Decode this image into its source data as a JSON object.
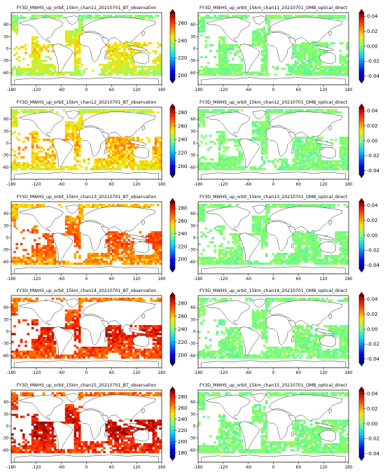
{
  "figure": {
    "rows": [
      {
        "observation": {
          "title": "FY3D_MWHS_up_orbit_15km_chan11_20210701_BT_observation",
          "colorbar": {
            "ticks": [
              200,
              220,
              240,
              260
            ],
            "range": [
              195,
              272
            ]
          },
          "level": 0.55
        },
        "omb": {
          "title": "FY3D_MWHS_up_orbit_15km_chan11_20210701_OMB_optical_direct",
          "colorbar": {
            "ticks": [
              "0.04",
              "0.02",
              "0.00",
              "-0.02",
              "-0.04"
            ],
            "range": [
              -0.045,
              0.045
            ]
          }
        }
      },
      {
        "observation": {
          "title": "FY3D_MWHS_up_orbit_15km_chan12_20210701_BT_observation",
          "colorbar": {
            "ticks": [
              200,
              220,
              240,
              260,
              280
            ],
            "range": [
              188,
              288
            ]
          },
          "level": 0.62
        },
        "omb": {
          "title": "FY3D_MWHS_up_orbit_15km_chan12_20210701_OMB_optical_direct",
          "colorbar": {
            "ticks": [
              "0.04",
              "0.02",
              "0.00",
              "-0.02",
              "-0.04"
            ],
            "range": [
              -0.045,
              0.045
            ]
          }
        }
      },
      {
        "observation": {
          "title": "FY3D_MWHS_up_orbit_15km_chan13_20210701_BT_observation",
          "colorbar": {
            "ticks": [
              200,
              220,
              240,
              260,
              280
            ],
            "range": [
              185,
              290
            ]
          },
          "level": 0.72
        },
        "omb": {
          "title": "FY3D_MWHS_up_orbit_15km_chan13_20210701_OMB_optical_direct",
          "colorbar": {
            "ticks": [
              "0.04",
              "0.02",
              "0.00",
              "-0.02",
              "-0.04"
            ],
            "range": [
              -0.045,
              0.045
            ]
          }
        }
      },
      {
        "observation": {
          "title": "FY3D_MWHS_up_orbit_15km_chan14_20210701_BT_observation",
          "colorbar": {
            "ticks": [
              200,
              220,
              240,
              260,
              280
            ],
            "range": [
              188,
              292
            ]
          },
          "level": 0.8
        },
        "omb": {
          "title": "FY3D_MWHS_up_orbit_15km_chan14_20210701_OMB_optical_direct",
          "colorbar": {
            "ticks": [
              "0.04",
              "0.02",
              "0.00",
              "-0.02",
              "-0.04"
            ],
            "range": [
              -0.045,
              0.045
            ]
          }
        }
      },
      {
        "observation": {
          "title": "FY3D_MWHS_up_orbit_15km_chan15_20210701_BT_observation",
          "colorbar": {
            "ticks": [
              180,
              200,
              220,
              240,
              260,
              280
            ],
            "range": [
              172,
              292
            ]
          },
          "level": 0.84
        },
        "omb": {
          "title": "FY3D_MWHS_up_orbit_15km_chan15_20210701_OMB_optical_direct",
          "colorbar": {
            "ticks": [
              "0.04",
              "0.02",
              "0.00",
              "-0.02",
              "-0.04"
            ],
            "range": [
              -0.045,
              0.045
            ]
          }
        }
      }
    ],
    "x_ticks": [
      "-180",
      "-120",
      "-60",
      "0",
      "60",
      "120",
      "180"
    ],
    "y_ticks": [
      "60",
      "30",
      "0",
      "-30",
      "-60"
    ]
  },
  "chart_data": {
    "type": "heatmap",
    "layout": "5 rows x 2 columns of global maps",
    "x_axis": {
      "ticks": [
        -180,
        -120,
        -60,
        0,
        60,
        120,
        180
      ],
      "range": [
        -180,
        180
      ]
    },
    "y_axis": {
      "ticks": [
        60,
        30,
        0,
        -30,
        -60
      ],
      "range": [
        -90,
        90
      ]
    },
    "observation_colormap": "jet",
    "omb_colormap": "jet",
    "omb_typical_value": 0.0,
    "panels": [
      {
        "title": "FY3D_MWHS_up_orbit_15km_chan11_20210701_BT_observation",
        "colorbar_ticks": [
          200,
          220,
          240,
          260
        ]
      },
      {
        "title": "FY3D_MWHS_up_orbit_15km_chan11_20210701_OMB_optical_direct",
        "colorbar_ticks": [
          0.04,
          0.02,
          0.0,
          -0.02,
          -0.04
        ]
      },
      {
        "title": "FY3D_MWHS_up_orbit_15km_chan12_20210701_BT_observation",
        "colorbar_ticks": [
          200,
          220,
          240,
          260,
          280
        ]
      },
      {
        "title": "FY3D_MWHS_up_orbit_15km_chan12_20210701_OMB_optical_direct",
        "colorbar_ticks": [
          0.04,
          0.02,
          0.0,
          -0.02,
          -0.04
        ]
      },
      {
        "title": "FY3D_MWHS_up_orbit_15km_chan13_20210701_BT_observation",
        "colorbar_ticks": [
          200,
          220,
          240,
          260,
          280
        ]
      },
      {
        "title": "FY3D_MWHS_up_orbit_15km_chan13_20210701_OMB_optical_direct",
        "colorbar_ticks": [
          0.04,
          0.02,
          0.0,
          -0.02,
          -0.04
        ]
      },
      {
        "title": "FY3D_MWHS_up_orbit_15km_chan14_20210701_BT_observation",
        "colorbar_ticks": [
          200,
          220,
          240,
          260,
          280
        ]
      },
      {
        "title": "FY3D_MWHS_up_orbit_15km_chan14_20210701_OMB_optical_direct",
        "colorbar_ticks": [
          0.04,
          0.02,
          0.0,
          -0.02,
          -0.04
        ]
      },
      {
        "title": "FY3D_MWHS_up_orbit_15km_chan15_20210701_BT_observation",
        "colorbar_ticks": [
          180,
          200,
          220,
          240,
          260,
          280
        ]
      },
      {
        "title": "FY3D_MWHS_up_orbit_15km_chan15_20210701_OMB_optical_direct",
        "colorbar_ticks": [
          0.04,
          0.02,
          0.0,
          -0.02,
          -0.04
        ]
      }
    ]
  }
}
